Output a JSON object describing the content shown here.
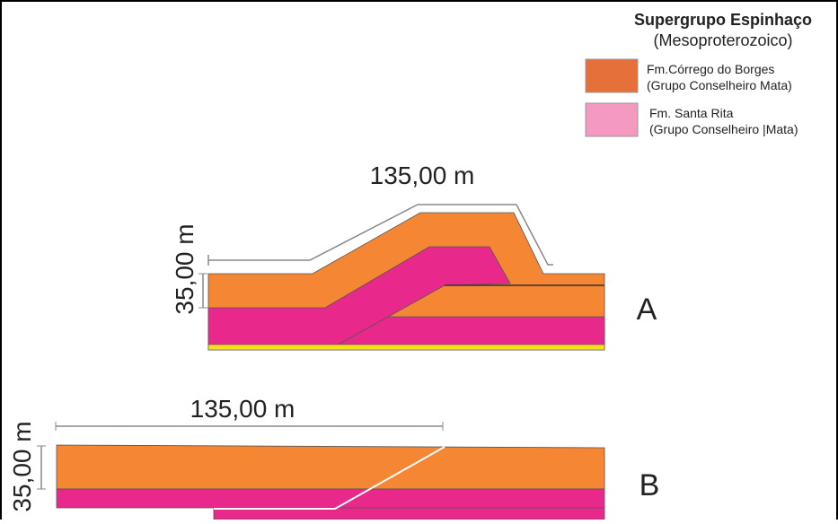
{
  "legend": {
    "title": "Supergrupo Espinhaço",
    "subtitle": "(Mesoproterozoico)",
    "items": [
      {
        "label": "Fm.Córrego do Borges",
        "sublabel": "(Grupo Conselheiro Mata)"
      },
      {
        "label": "Fm. Santa Rita",
        "sublabel": "(Grupo Conselheiro |Mata)"
      }
    ]
  },
  "sections": [
    {
      "label": "A",
      "width_label": "135,00 m",
      "height_label": "35,00 m"
    },
    {
      "label": "B",
      "width_label": "135,00 m",
      "height_label": "35,00 m"
    }
  ]
}
